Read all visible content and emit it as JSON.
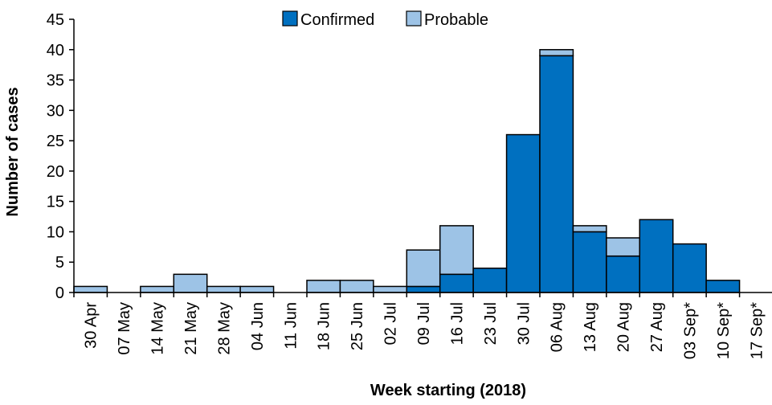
{
  "chart_data": {
    "type": "bar",
    "stacked": true,
    "categories": [
      "30 Apr",
      "07 May",
      "14 May",
      "21 May",
      "28 May",
      "04 Jun",
      "11 Jun",
      "18 Jun",
      "25 Jun",
      "02 Jul",
      "09 Jul",
      "16 Jul",
      "23 Jul",
      "30 Jul",
      "06 Aug",
      "13 Aug",
      "20 Aug",
      "27 Aug",
      "03 Sep*",
      "10 Sep*",
      "17 Sep*"
    ],
    "series": [
      {
        "name": "Confirmed",
        "color": "#0070c0",
        "values": [
          0,
          0,
          0,
          0,
          0,
          0,
          0,
          0,
          0,
          0,
          1,
          3,
          4,
          26,
          39,
          10,
          6,
          12,
          8,
          2,
          0
        ]
      },
      {
        "name": "Probable",
        "color": "#9dc3e6",
        "values": [
          1,
          0,
          1,
          3,
          1,
          1,
          0,
          2,
          2,
          1,
          6,
          8,
          0,
          0,
          1,
          1,
          3,
          0,
          0,
          0,
          0
        ]
      }
    ],
    "title": "",
    "xlabel": "Week starting (2018)",
    "ylabel": "Number of cases",
    "ylim": [
      0,
      45
    ],
    "yticks": [
      "0",
      "5",
      "10",
      "15",
      "20",
      "25",
      "30",
      "35",
      "40",
      "45"
    ],
    "grid": false,
    "legend": "top-center"
  }
}
